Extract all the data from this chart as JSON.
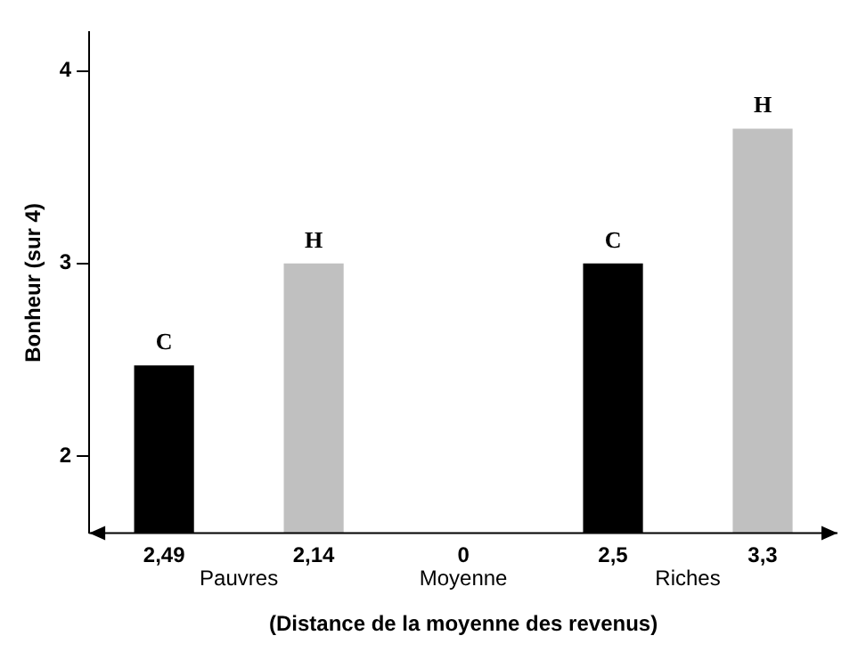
{
  "chart_data": {
    "type": "bar",
    "xlabel": "(Distance de la moyenne des revenus)",
    "ylabel": "Bonheur (sur 4)",
    "categories": [
      "2,49",
      "2,14",
      "0",
      "2,5",
      "3,3"
    ],
    "series": [
      {
        "name": "C",
        "color": "#000000",
        "values": [
          2.47,
          null,
          null,
          3.0,
          null
        ]
      },
      {
        "name": "H",
        "color": "#c0c0c0",
        "values": [
          null,
          3.0,
          null,
          null,
          3.7
        ]
      }
    ],
    "ylim": [
      1.6,
      4.2
    ],
    "yticks": [
      2,
      3,
      4
    ],
    "grid": false,
    "legend": false,
    "annotations": [
      "Pauvres",
      "Moyenne",
      "Riches"
    ]
  }
}
